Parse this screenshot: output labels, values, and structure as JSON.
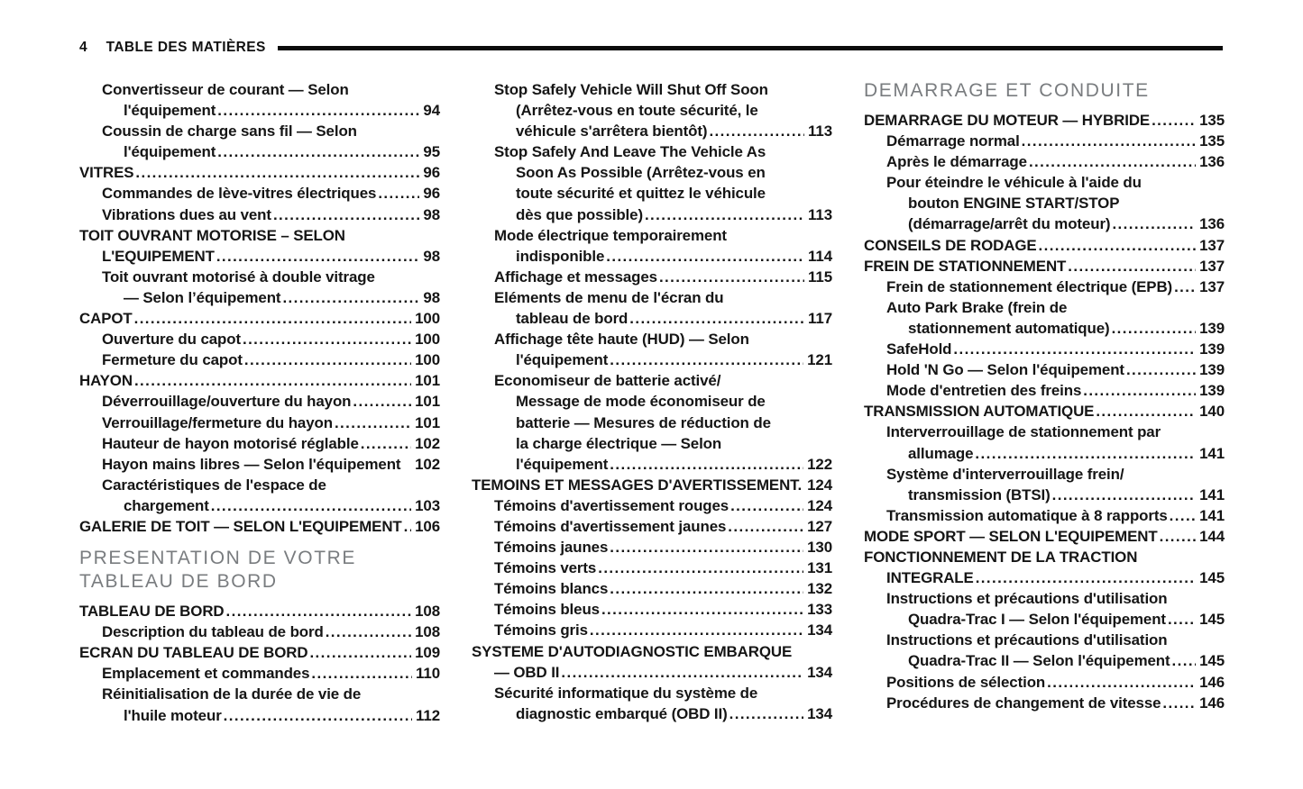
{
  "header": {
    "page_number": "4",
    "title": "TABLE DES MATIÈRES"
  },
  "colors": {
    "text": "#151515",
    "section_heading": "#797c7f",
    "rule": "#0b0b0b",
    "background": "#ffffff"
  },
  "columns": [
    {
      "items": [
        {
          "t": "Convertisseur de courant — Selon",
          "i": 1
        },
        {
          "t": "l'équipement",
          "p": "94",
          "i": 2
        },
        {
          "t": "Coussin de charge sans fil — Selon",
          "i": 1
        },
        {
          "t": "l'équipement",
          "p": "95",
          "i": 2
        },
        {
          "t": "VITRES",
          "p": "96",
          "i": 0
        },
        {
          "t": "Commandes de lève-vitres électriques",
          "p": "96",
          "i": 1
        },
        {
          "t": "Vibrations dues au vent",
          "p": "98",
          "i": 1
        },
        {
          "t": "TOIT OUVRANT MOTORISE – SELON",
          "i": 0
        },
        {
          "t": "L'EQUIPEMENT",
          "p": "98",
          "i": 1
        },
        {
          "t": "Toit ouvrant motorisé à double vitrage",
          "i": 1
        },
        {
          "t": "— Selon l’équipement",
          "p": "98",
          "i": 2
        },
        {
          "t": "CAPOT",
          "p": "100",
          "i": 0
        },
        {
          "t": "Ouverture du capot",
          "p": "100",
          "i": 1
        },
        {
          "t": "Fermeture du capot",
          "p": "100",
          "i": 1
        },
        {
          "t": "HAYON",
          "p": "101",
          "i": 0
        },
        {
          "t": "Déverrouillage/ouverture du hayon",
          "p": "101",
          "i": 1
        },
        {
          "t": "Verrouillage/fermeture du hayon",
          "p": "101",
          "i": 1
        },
        {
          "t": "Hauteur de hayon motorisé réglable",
          "p": "102",
          "i": 1
        },
        {
          "t": "Hayon mains libres — Selon l'équipement",
          "p": "102",
          "i": 1,
          "ld": "space"
        },
        {
          "t": "Caractéristiques de l'espace de",
          "i": 1
        },
        {
          "t": "chargement",
          "p": "103",
          "i": 2
        },
        {
          "t": "GALERIE DE TOIT — SELON L'EQUIPEMENT",
          "p": "106",
          "i": 0
        },
        {
          "sec": [
            "PRESENTATION DE VOTRE",
            "TABLEAU DE BORD"
          ]
        },
        {
          "t": "TABLEAU DE BORD",
          "p": "108",
          "i": 0
        },
        {
          "t": "Description du tableau de bord",
          "p": "108",
          "i": 1
        },
        {
          "t": "ECRAN DU TABLEAU DE BORD",
          "p": "109",
          "i": 0
        },
        {
          "t": "Emplacement et commandes",
          "p": "110",
          "i": 1
        },
        {
          "t": "Réinitialisation de la durée de vie de",
          "i": 1
        },
        {
          "t": "l'huile moteur",
          "p": "112",
          "i": 2
        }
      ]
    },
    {
      "items": [
        {
          "t": "Stop Safely Vehicle Will Shut Off Soon",
          "i": 1
        },
        {
          "t": "(Arrêtez-vous en toute sécurité, le",
          "i": 2
        },
        {
          "t": "véhicule s'arrêtera bientôt)",
          "p": "113",
          "i": 2
        },
        {
          "t": "Stop Safely And Leave The Vehicle As",
          "i": 1
        },
        {
          "t": "Soon As Possible (Arrêtez-vous en",
          "i": 2
        },
        {
          "t": "toute sécurité et quittez le véhicule",
          "i": 2
        },
        {
          "t": "dès que possible)",
          "p": "113",
          "i": 2
        },
        {
          "t": "Mode électrique temporairement",
          "i": 1
        },
        {
          "t": "indisponible",
          "p": "114",
          "i": 2
        },
        {
          "t": "Affichage et messages",
          "p": "115",
          "i": 1
        },
        {
          "t": "Eléments de menu de l'écran du",
          "i": 1
        },
        {
          "t": "tableau de bord",
          "p": "117",
          "i": 2
        },
        {
          "t": "Affichage tête haute (HUD) — Selon",
          "i": 1
        },
        {
          "t": "l'équipement",
          "p": "121",
          "i": 2
        },
        {
          "t": "Economiseur de batterie activé/",
          "i": 1
        },
        {
          "t": "Message de mode économiseur de",
          "i": 2
        },
        {
          "t": "batterie — Mesures de réduction de",
          "i": 2
        },
        {
          "t": "la charge électrique — Selon",
          "i": 2
        },
        {
          "t": "l'équipement",
          "p": "122",
          "i": 2
        },
        {
          "t": "TEMOINS ET MESSAGES D'AVERTISSEMENT.",
          "p": "124",
          "i": 0,
          "ld": "space"
        },
        {
          "t": "Témoins d'avertissement rouges",
          "p": "124",
          "i": 1
        },
        {
          "t": "Témoins d'avertissement jaunes",
          "p": "127",
          "i": 1
        },
        {
          "t": "Témoins jaunes",
          "p": "130",
          "i": 1
        },
        {
          "t": "Témoins verts",
          "p": "131",
          "i": 1
        },
        {
          "t": "Témoins blancs",
          "p": "132",
          "i": 1
        },
        {
          "t": "Témoins bleus",
          "p": "133",
          "i": 1
        },
        {
          "t": "Témoins gris",
          "p": "134",
          "i": 1
        },
        {
          "t": "SYSTEME D'AUTODIAGNOSTIC EMBARQUE",
          "i": 0
        },
        {
          "t": "— OBD II",
          "p": "134",
          "i": 1
        },
        {
          "t": "Sécurité informatique du système de",
          "i": 1
        },
        {
          "t": "diagnostic embarqué (OBD II)",
          "p": "134",
          "i": 2
        }
      ]
    },
    {
      "items": [
        {
          "sec": [
            "DEMARRAGE ET CONDUITE"
          ]
        },
        {
          "t": "DEMARRAGE DU MOTEUR — HYBRIDE",
          "p": "135",
          "i": 0
        },
        {
          "t": "Démarrage normal",
          "p": "135",
          "i": 1
        },
        {
          "t": "Après le démarrage",
          "p": "136",
          "i": 1
        },
        {
          "t": "Pour éteindre le véhicule à l'aide du",
          "i": 1
        },
        {
          "t": "bouton ENGINE START/STOP",
          "i": 2
        },
        {
          "t": "(démarrage/arrêt du moteur)",
          "p": "136",
          "i": 2
        },
        {
          "t": "CONSEILS DE RODAGE",
          "p": "137",
          "i": 0
        },
        {
          "t": "FREIN DE STATIONNEMENT",
          "p": "137",
          "i": 0
        },
        {
          "t": "Frein de stationnement électrique (EPB)",
          "p": "137",
          "i": 1
        },
        {
          "t": "Auto Park Brake (frein de",
          "i": 1
        },
        {
          "t": "stationnement automatique)",
          "p": "139",
          "i": 2
        },
        {
          "t": "SafeHold",
          "p": "139",
          "i": 1
        },
        {
          "t": "Hold 'N Go — Selon l'équipement",
          "p": "139",
          "i": 1
        },
        {
          "t": "Mode d'entretien des freins",
          "p": "139",
          "i": 1
        },
        {
          "t": "TRANSMISSION AUTOMATIQUE",
          "p": "140",
          "i": 0
        },
        {
          "t": "Interverrouillage de stationnement par",
          "i": 1
        },
        {
          "t": "allumage",
          "p": "141",
          "i": 2
        },
        {
          "t": "Système d'interverrouillage frein/",
          "i": 1
        },
        {
          "t": "transmission (BTSI)",
          "p": "141",
          "i": 2
        },
        {
          "t": "Transmission automatique à 8 rapports",
          "p": "141",
          "i": 1
        },
        {
          "t": "MODE SPORT — SELON L'EQUIPEMENT",
          "p": "144",
          "i": 0
        },
        {
          "t": "FONCTIONNEMENT DE LA TRACTION",
          "i": 0
        },
        {
          "t": "INTEGRALE",
          "p": "145",
          "i": 1
        },
        {
          "t": "Instructions et précautions d'utilisation",
          "i": 1
        },
        {
          "t": "Quadra-Trac I — Selon l'équipement",
          "p": "145",
          "i": 2
        },
        {
          "t": "Instructions et précautions d'utilisation",
          "i": 1
        },
        {
          "t": "Quadra-Trac II — Selon l'équipement",
          "p": "145",
          "i": 2
        },
        {
          "t": "Positions de sélection",
          "p": "146",
          "i": 1
        },
        {
          "t": "Procédures de changement de vitesse",
          "p": "146",
          "i": 1
        }
      ]
    }
  ]
}
